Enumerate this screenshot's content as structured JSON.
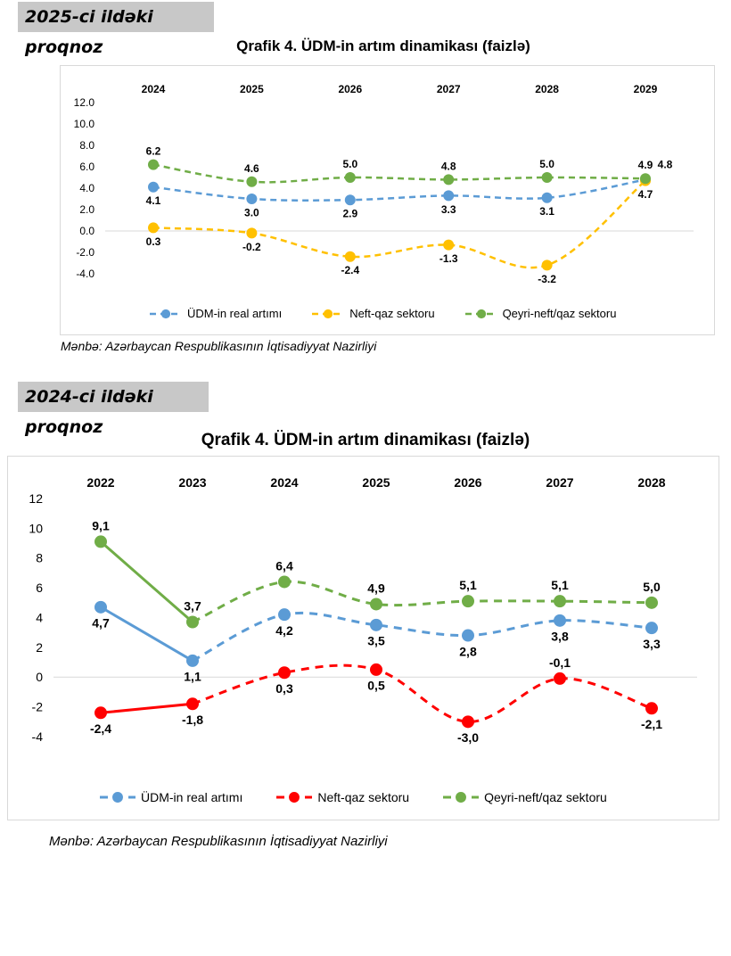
{
  "banner_top": "2025-ci ildəki proqnoz",
  "banner_bottom": "2024-ci ildəki proqnoz",
  "chart_data": [
    {
      "type": "line",
      "title": "Qrafik 4. ÜDM-in artım dinamikası (faizlə)",
      "categories": [
        "2024",
        "2025",
        "2026",
        "2027",
        "2028",
        "2029"
      ],
      "yticks": [
        "12.0",
        "10.0",
        "8.0",
        "6.0",
        "4.0",
        "2.0",
        "0.0",
        "-2.0",
        "-4.0"
      ],
      "ylim": [
        -4,
        12
      ],
      "grid": false,
      "legend_position": "bottom",
      "series": [
        {
          "name": "ÜDM-in real artımı",
          "color": "#5b9bd5",
          "values": [
            4.1,
            3.0,
            2.9,
            3.3,
            3.1,
            4.8
          ],
          "labels": [
            "4.1",
            "3.0",
            "2.9",
            "3.3",
            "3.1",
            "4.8"
          ]
        },
        {
          "name": "Neft-qaz sektoru",
          "color": "#ffc000",
          "values": [
            0.3,
            -0.2,
            -2.4,
            -1.3,
            -3.2,
            4.7
          ],
          "labels": [
            "0.3",
            "-0.2",
            "-2.4",
            "-1.3",
            "-3.2",
            "4.7"
          ]
        },
        {
          "name": "Qeyri-neft/qaz sektoru",
          "color": "#70ad47",
          "values": [
            6.2,
            4.6,
            5.0,
            4.8,
            5.0,
            4.9
          ],
          "labels": [
            "6.2",
            "4.6",
            "5.0",
            "4.8",
            "5.0",
            "4.9"
          ]
        }
      ],
      "source": "Mənbə: Azərbaycan Respublikasının İqtisadiyyat Nazirliyi"
    },
    {
      "type": "line",
      "title": "Qrafik 4. ÜDM-in artım dinamikası (faizlə)",
      "categories": [
        "2022",
        "2023",
        "2024",
        "2025",
        "2026",
        "2027",
        "2028"
      ],
      "yticks": [
        "12",
        "10",
        "8",
        "6",
        "4",
        "2",
        "0",
        "-2",
        "-4"
      ],
      "ylim": [
        -4,
        12
      ],
      "grid": false,
      "legend_position": "bottom",
      "series": [
        {
          "name": "ÜDM-in real artımı",
          "color": "#5b9bd5",
          "values": [
            4.7,
            1.1,
            4.2,
            3.5,
            2.8,
            3.8,
            3.3
          ],
          "labels": [
            "4,7",
            "1,1",
            "4,2",
            "3,5",
            "2,8",
            "3,8",
            "3,3"
          ]
        },
        {
          "name": "Neft-qaz sektoru",
          "color": "#ff0000",
          "values": [
            -2.4,
            -1.8,
            0.3,
            0.5,
            -3.0,
            -0.1,
            -2.1
          ],
          "labels": [
            "-2,4",
            "-1,8",
            "0,3",
            "0,5",
            "-3,0",
            "-0,1",
            "-2,1"
          ]
        },
        {
          "name": "Qeyri-neft/qaz sektoru",
          "color": "#70ad47",
          "values": [
            9.1,
            3.7,
            6.4,
            4.9,
            5.1,
            5.1,
            5.0
          ],
          "labels": [
            "9,1",
            "3,7",
            "6,4",
            "4,9",
            "5,1",
            "5,1",
            "5,0"
          ]
        }
      ],
      "actual_through_index": 1,
      "source": "Mənbə: Azərbaycan Respublikasının İqtisadiyyat Nazirliyi"
    }
  ]
}
